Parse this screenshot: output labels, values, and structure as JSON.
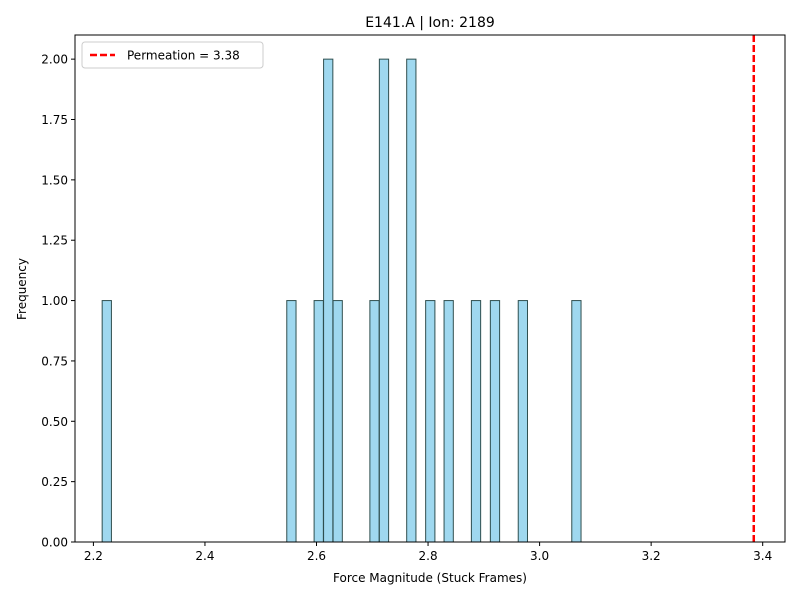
{
  "chart_data": {
    "type": "bar",
    "title": "E141.A | Ion: 2189",
    "xlabel": "Force Magnitude (Stuck Frames)",
    "ylabel": "Frequency",
    "xlim": [
      2.167,
      3.44
    ],
    "ylim": [
      0,
      2.1
    ],
    "x_ticks": [
      2.2,
      2.4,
      2.6,
      2.8,
      3.0,
      3.2,
      3.4
    ],
    "x_tick_labels": [
      "2.2",
      "2.4",
      "2.6",
      "2.8",
      "3.0",
      "3.2",
      "3.4"
    ],
    "y_ticks": [
      0,
      0.25,
      0.5,
      0.75,
      1.0,
      1.25,
      1.5,
      1.75,
      2.0
    ],
    "y_tick_labels": [
      "0.00",
      "0.25",
      "0.50",
      "0.75",
      "1.00",
      "1.25",
      "1.50",
      "1.75",
      "2.00"
    ],
    "bin_width": 0.0166,
    "bars": [
      {
        "x": 2.224,
        "value": 1
      },
      {
        "x": 2.555,
        "value": 1
      },
      {
        "x": 2.604,
        "value": 1
      },
      {
        "x": 2.621,
        "value": 2
      },
      {
        "x": 2.638,
        "value": 1
      },
      {
        "x": 2.704,
        "value": 1
      },
      {
        "x": 2.721,
        "value": 2
      },
      {
        "x": 2.77,
        "value": 2
      },
      {
        "x": 2.804,
        "value": 1
      },
      {
        "x": 2.837,
        "value": 1
      },
      {
        "x": 2.886,
        "value": 1
      },
      {
        "x": 2.92,
        "value": 1
      },
      {
        "x": 2.97,
        "value": 1
      },
      {
        "x": 3.066,
        "value": 1
      }
    ],
    "bar_fill": "#87ceeb",
    "bar_edge": "#2f4f4f",
    "reference_line": {
      "x": 3.384,
      "label": "Permeation = 3.38",
      "color": "#ff0000",
      "style": "dashed"
    },
    "legend_position": "top-left",
    "grid": false
  }
}
